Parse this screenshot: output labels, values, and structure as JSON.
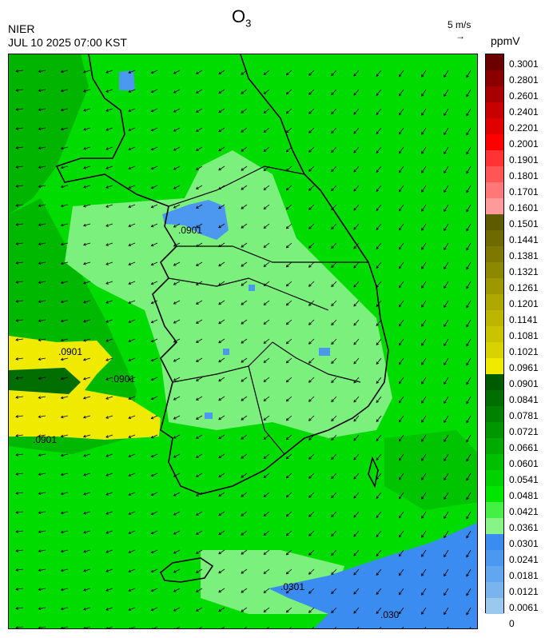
{
  "header": {
    "title_main": "O",
    "title_sub": "3",
    "agency": "NIER",
    "datetime": "JUL 10 2025 07:00 KST",
    "wind_scale_label": "5 m/s",
    "wind_scale_arrow": "→",
    "unit": "ppmV"
  },
  "map": {
    "contour_labels": [
      ".0901",
      ".0901",
      ".0901",
      ".0901",
      ".0301",
      ".030"
    ]
  },
  "colorbar": {
    "labels": [
      "0.3001",
      "0.2801",
      "0.2601",
      "0.2401",
      "0.2201",
      "0.2001",
      "0.1901",
      "0.1801",
      "0.1701",
      "0.1601",
      "0.1501",
      "0.1441",
      "0.1381",
      "0.1321",
      "0.1261",
      "0.1201",
      "0.1141",
      "0.1081",
      "0.1021",
      "0.0961",
      "0.0901",
      "0.0841",
      "0.0781",
      "0.0721",
      "0.0661",
      "0.0601",
      "0.0541",
      "0.0481",
      "0.0421",
      "0.0361",
      "0.0301",
      "0.0241",
      "0.0181",
      "0.0121",
      "0.0061",
      "0"
    ],
    "colors": [
      "#6a0000",
      "#8a0000",
      "#a80000",
      "#c80000",
      "#e00000",
      "#ff0000",
      "#ff3333",
      "#ff5555",
      "#ff7777",
      "#ff9a9a",
      "#5e5a00",
      "#6e6a00",
      "#7e7800",
      "#8e8800",
      "#9e9800",
      "#aea800",
      "#bcb600",
      "#cac400",
      "#d8d200",
      "#f0ea00",
      "#005a00",
      "#006e00",
      "#008200",
      "#009600",
      "#00aa00",
      "#00be00",
      "#00d200",
      "#00e600",
      "#44f044",
      "#88f488",
      "#3a8cf0",
      "#4c98f0",
      "#62a6f0",
      "#7ab4ee",
      "#9ac8ee"
    ]
  }
}
